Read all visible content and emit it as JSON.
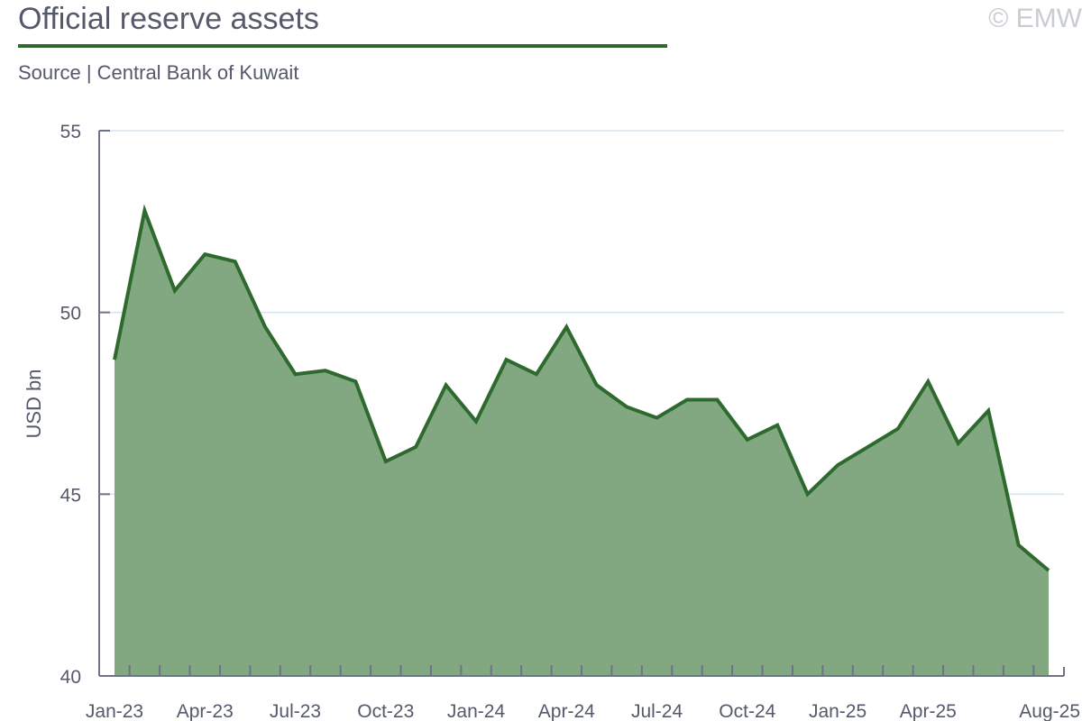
{
  "header": {
    "title": "Official reserve assets",
    "subtitle": "Source | Central Bank of Kuwait",
    "watermark": "© EMW"
  },
  "colors": {
    "line": "#2e6a2e",
    "fill": "#82a882",
    "grid": "#d5e3ec",
    "axis": "#6e7385",
    "text": "#555a6b"
  },
  "chart_data": {
    "type": "area",
    "ylabel": "USD bn",
    "xlabel": "",
    "ylim": [
      40,
      55
    ],
    "yticks": [
      40,
      45,
      50,
      55
    ],
    "grid": true,
    "x_tick_labels": [
      "Jan-23",
      "Apr-23",
      "Jul-23",
      "Oct-23",
      "Jan-24",
      "Apr-24",
      "Jul-24",
      "Oct-24",
      "Jan-25",
      "Apr-25",
      "Aug-25"
    ],
    "x": [
      "Jan-23",
      "Feb-23",
      "Mar-23",
      "Apr-23",
      "May-23",
      "Jun-23",
      "Jul-23",
      "Aug-23",
      "Sep-23",
      "Oct-23",
      "Nov-23",
      "Dec-23",
      "Jan-24",
      "Feb-24",
      "Mar-24",
      "Apr-24",
      "May-24",
      "Jun-24",
      "Jul-24",
      "Aug-24",
      "Sep-24",
      "Oct-24",
      "Nov-24",
      "Dec-24",
      "Jan-25",
      "Feb-25",
      "Mar-25",
      "Apr-25",
      "May-25",
      "Jun-25",
      "Jul-25",
      "Aug-25"
    ],
    "series": [
      {
        "values": [
          48.7,
          52.8,
          50.6,
          51.6,
          51.4,
          49.6,
          48.3,
          48.4,
          48.1,
          45.9,
          46.3,
          48.0,
          47.0,
          48.7,
          48.3,
          49.6,
          48.0,
          47.4,
          47.1,
          47.6,
          47.6,
          46.5,
          46.9,
          45.0,
          45.8,
          46.3,
          46.8,
          48.1,
          46.4,
          47.3,
          43.6,
          42.9
        ]
      }
    ]
  }
}
